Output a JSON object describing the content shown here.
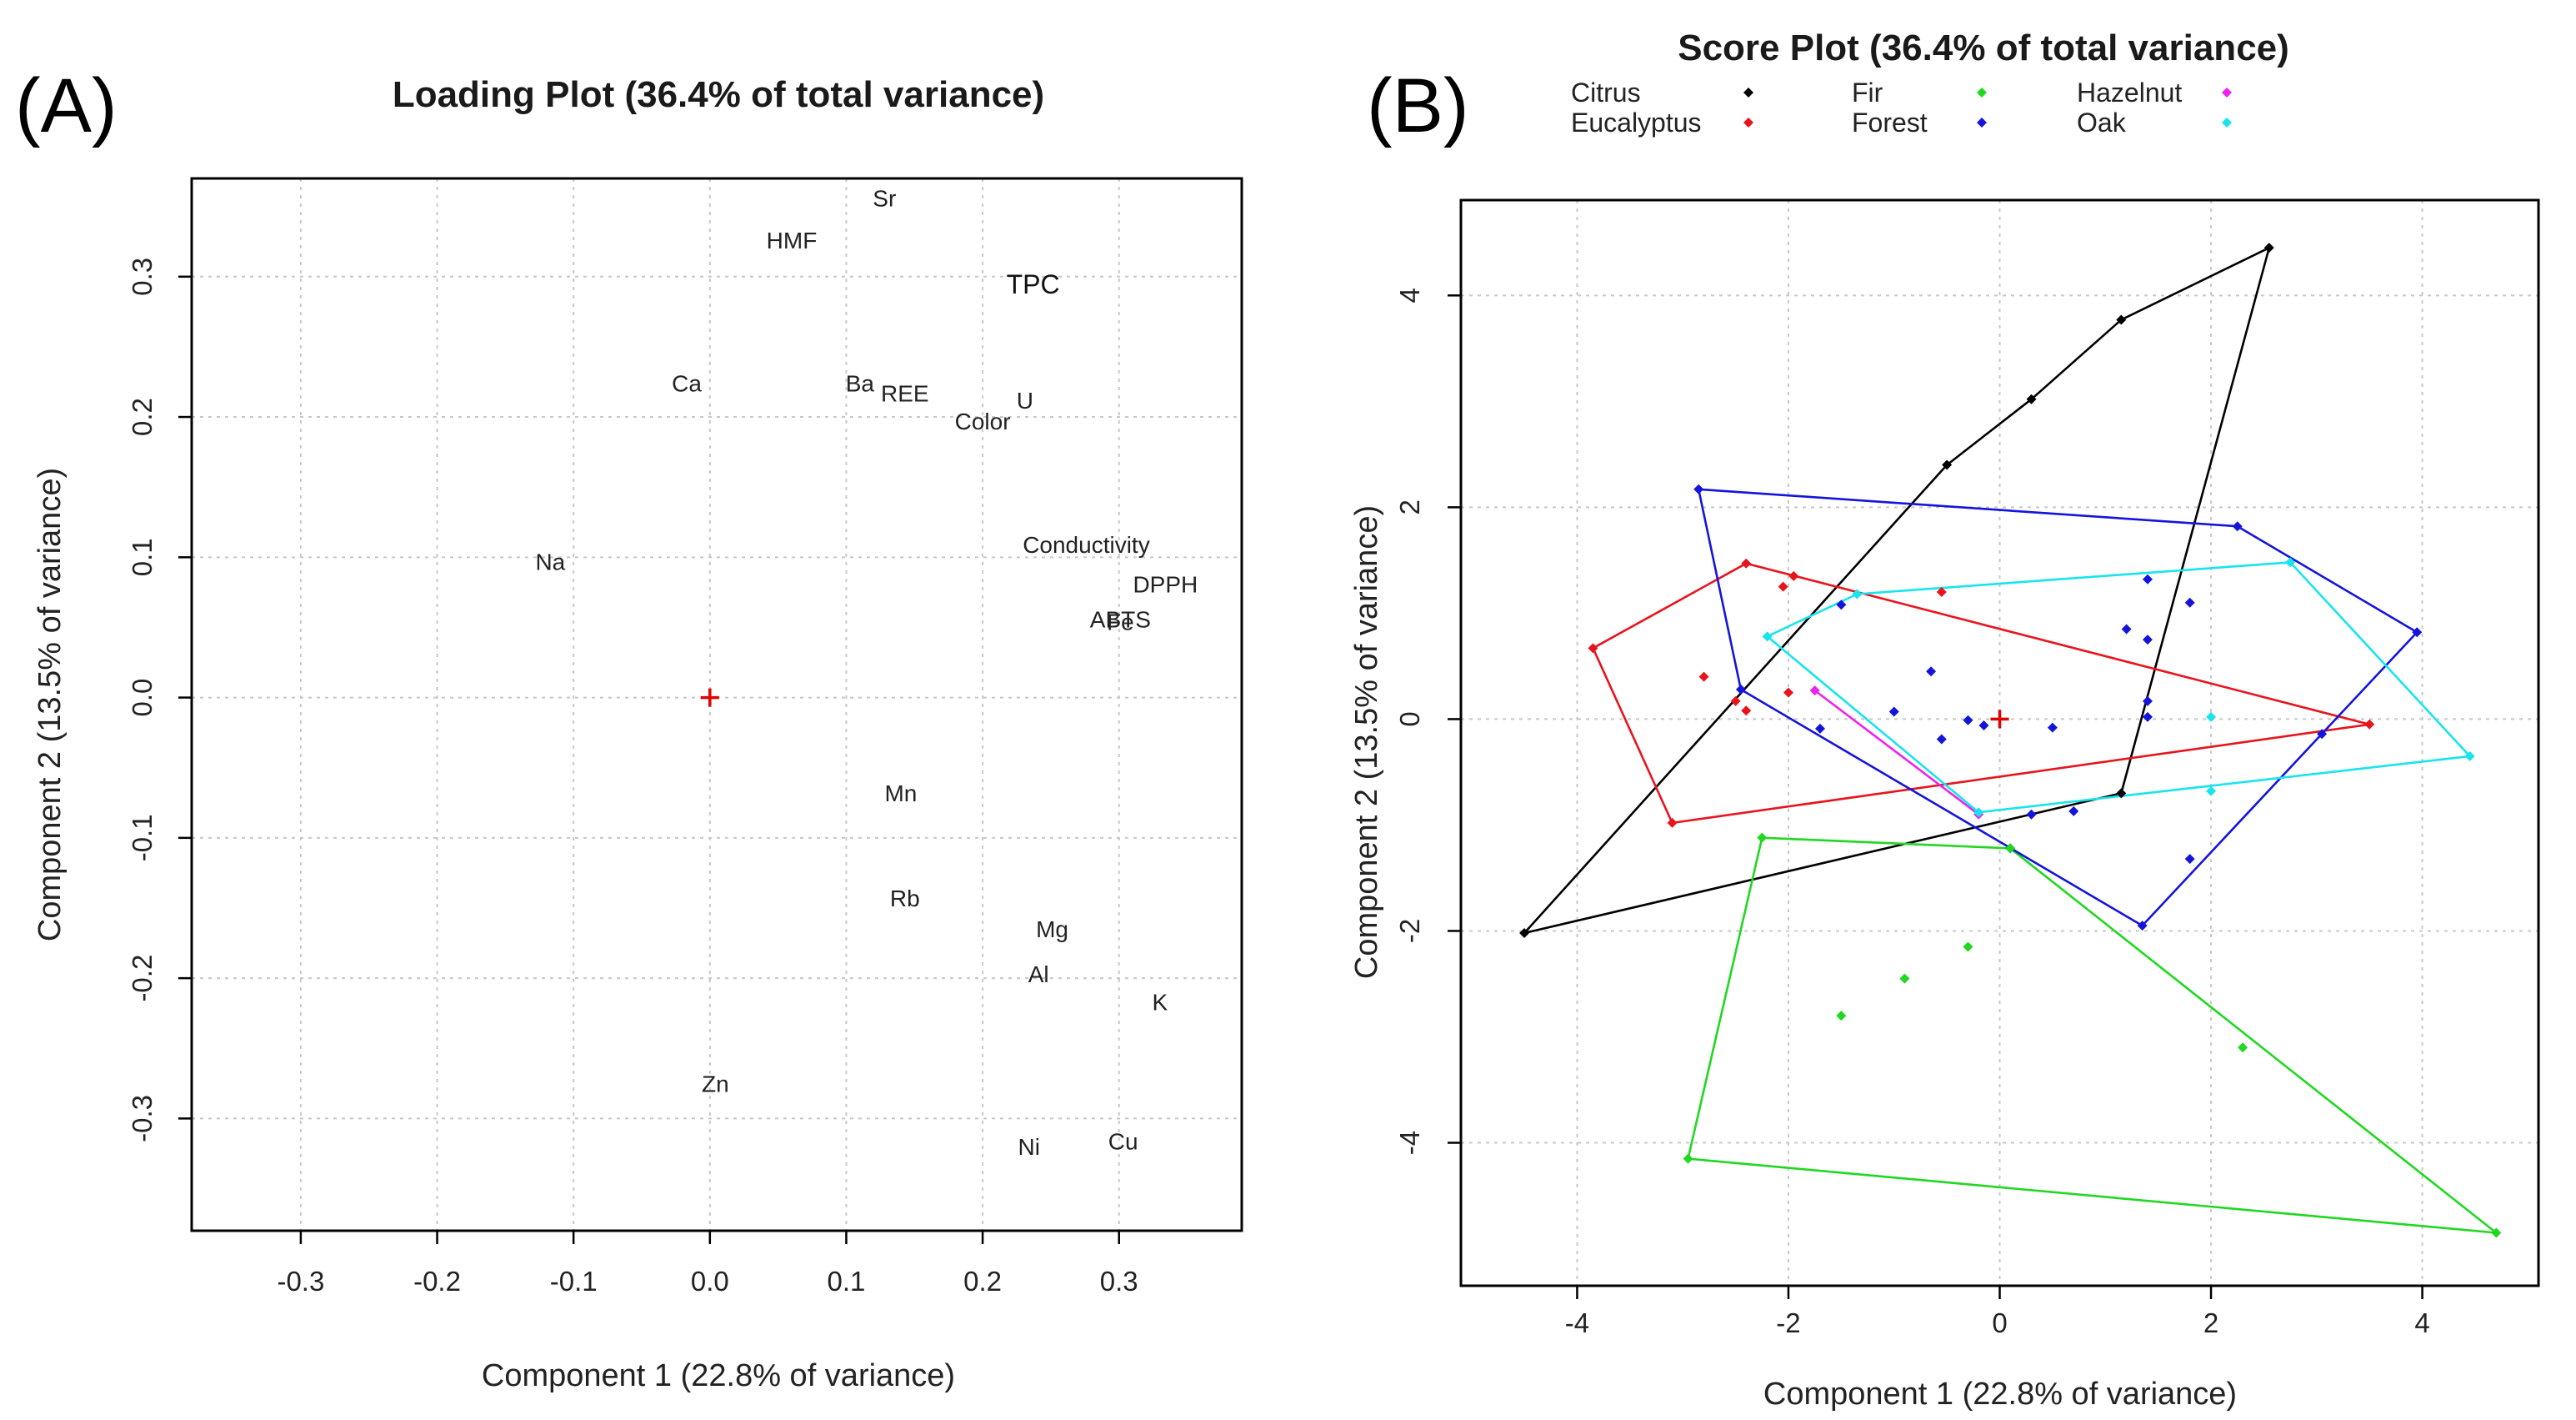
{
  "chart_data": [
    {
      "type": "scatter",
      "panel_label": "(A)",
      "title": "Loading Plot (36.4% of total variance)",
      "xlabel": "Component 1 (22.8% of variance)",
      "ylabel": "Component 2 (13.5% of variance)",
      "xlim": [
        -0.38,
        0.39
      ],
      "ylim": [
        -0.38,
        0.37
      ],
      "xticks": [
        -0.3,
        -0.2,
        -0.1,
        0.0,
        0.1,
        0.2,
        0.3
      ],
      "xtick_labels": [
        "-0.3",
        "-0.2",
        "-0.1",
        "0.0",
        "0.1",
        "0.2",
        "0.3"
      ],
      "yticks": [
        -0.3,
        -0.2,
        -0.1,
        0.0,
        0.1,
        0.2,
        0.3
      ],
      "ytick_labels": [
        "-0.3",
        "-0.2",
        "-0.1",
        "0.0",
        "0.1",
        "0.2",
        "0.3"
      ],
      "grid": true,
      "origin_marker": {
        "x": 0,
        "y": 0,
        "symbol": "+",
        "color": "#e00000"
      },
      "points": [
        {
          "label": "Sr",
          "x": 0.128,
          "y": 0.356
        },
        {
          "label": "HMF",
          "x": 0.06,
          "y": 0.326
        },
        {
          "label": "TPC",
          "x": 0.237,
          "y": 0.294
        },
        {
          "label": "Ca",
          "x": -0.017,
          "y": 0.224
        },
        {
          "label": "Ba",
          "x": 0.11,
          "y": 0.224
        },
        {
          "label": "REE",
          "x": 0.143,
          "y": 0.217
        },
        {
          "label": "U",
          "x": 0.231,
          "y": 0.212
        },
        {
          "label": "Color",
          "x": 0.2,
          "y": 0.197
        },
        {
          "label": "Conductivity",
          "x": 0.276,
          "y": 0.109
        },
        {
          "label": "Na",
          "x": -0.117,
          "y": 0.097
        },
        {
          "label": "DPPH",
          "x": 0.334,
          "y": 0.081
        },
        {
          "label": "ABTS",
          "x": 0.301,
          "y": 0.056
        },
        {
          "label": "Fe",
          "x": 0.301,
          "y": 0.054
        },
        {
          "label": "Mn",
          "x": 0.14,
          "y": -0.068
        },
        {
          "label": "Rb",
          "x": 0.143,
          "y": -0.143
        },
        {
          "label": "Mg",
          "x": 0.251,
          "y": -0.165
        },
        {
          "label": "Al",
          "x": 0.241,
          "y": -0.197
        },
        {
          "label": "K",
          "x": 0.33,
          "y": -0.217
        },
        {
          "label": "Zn",
          "x": 0.004,
          "y": -0.275
        },
        {
          "label": "Cu",
          "x": 0.303,
          "y": -0.316
        },
        {
          "label": "Ni",
          "x": 0.234,
          "y": -0.32
        }
      ]
    },
    {
      "type": "scatter",
      "panel_label": "(B)",
      "title": "Score Plot (36.4% of total variance)",
      "xlabel": "Component 1 (22.8% of variance)",
      "ylabel": "Component 2 (13.5% of variance)",
      "xlim": [
        -5.1,
        5.1
      ],
      "ylim": [
        -5.35,
        4.9
      ],
      "xticks": [
        -4,
        -2,
        0,
        2,
        4
      ],
      "xtick_labels": [
        "-4",
        "-2",
        "0",
        "2",
        "4"
      ],
      "yticks": [
        -4,
        -2,
        0,
        2,
        4
      ],
      "ytick_labels": [
        "-4",
        "-2",
        "0",
        "2",
        "4"
      ],
      "grid": true,
      "legend_position": "top",
      "origin_marker": {
        "x": 0,
        "y": 0,
        "symbol": "+",
        "color": "#e00000"
      },
      "series": [
        {
          "name": "Citrus",
          "color": "#000000",
          "points": [
            [
              2.55,
              4.45
            ],
            [
              1.15,
              3.77
            ],
            [
              0.3,
              3.02
            ],
            [
              -0.5,
              2.4
            ],
            [
              -4.5,
              -2.02
            ],
            [
              1.15,
              -0.7
            ],
            [
              0.1,
              -1.22
            ]
          ],
          "hull": [
            [
              2.55,
              4.45
            ],
            [
              1.15,
              3.77
            ],
            [
              0.3,
              3.02
            ],
            [
              -0.5,
              2.4
            ],
            [
              -4.5,
              -2.02
            ],
            [
              1.15,
              -0.7
            ]
          ]
        },
        {
          "name": "Eucalyptus",
          "color": "#e8141c",
          "points": [
            [
              -2.4,
              1.47
            ],
            [
              -1.95,
              1.35
            ],
            [
              -2.05,
              1.25
            ],
            [
              -0.55,
              1.2
            ],
            [
              -3.85,
              0.67
            ],
            [
              -2.8,
              0.4
            ],
            [
              -2.0,
              0.25
            ],
            [
              -2.5,
              0.17
            ],
            [
              -2.4,
              0.08
            ],
            [
              3.5,
              -0.05
            ],
            [
              -3.1,
              -0.98
            ]
          ],
          "hull": [
            [
              -2.4,
              1.47
            ],
            [
              3.5,
              -0.05
            ],
            [
              -3.1,
              -0.98
            ],
            [
              -3.85,
              0.67
            ]
          ]
        },
        {
          "name": "Fir",
          "color": "#1fd81f",
          "points": [
            [
              -2.25,
              -1.12
            ],
            [
              0.1,
              -1.22
            ],
            [
              -0.3,
              -2.15
            ],
            [
              -0.9,
              -2.45
            ],
            [
              -1.5,
              -2.8
            ],
            [
              2.3,
              -3.1
            ],
            [
              -2.95,
              -4.15
            ],
            [
              4.7,
              -4.85
            ]
          ],
          "hull": [
            [
              -2.25,
              -1.12
            ],
            [
              0.1,
              -1.22
            ],
            [
              4.7,
              -4.85
            ],
            [
              -2.95,
              -4.15
            ]
          ]
        },
        {
          "name": "Forest",
          "color": "#1414dc",
          "points": [
            [
              -2.85,
              2.17
            ],
            [
              2.25,
              1.82
            ],
            [
              1.4,
              1.32
            ],
            [
              1.8,
              1.1
            ],
            [
              -1.5,
              1.08
            ],
            [
              1.2,
              0.85
            ],
            [
              1.4,
              0.75
            ],
            [
              3.95,
              0.82
            ],
            [
              -0.65,
              0.45
            ],
            [
              -2.45,
              0.28
            ],
            [
              -1.0,
              0.07
            ],
            [
              1.4,
              0.17
            ],
            [
              1.4,
              0.02
            ],
            [
              -0.3,
              -0.01
            ],
            [
              -0.15,
              -0.06
            ],
            [
              0.5,
              -0.08
            ],
            [
              -1.7,
              -0.09
            ],
            [
              3.05,
              -0.14
            ],
            [
              -0.55,
              -0.19
            ],
            [
              0.7,
              -0.87
            ],
            [
              0.3,
              -0.9
            ],
            [
              1.8,
              -1.32
            ],
            [
              1.35,
              -1.95
            ]
          ],
          "hull": [
            [
              -2.85,
              2.17
            ],
            [
              2.25,
              1.82
            ],
            [
              3.95,
              0.82
            ],
            [
              1.35,
              -1.95
            ],
            [
              -2.45,
              0.28
            ]
          ]
        },
        {
          "name": "Hazelnut",
          "color": "#ee22ee",
          "points": [
            [
              -1.75,
              0.27
            ],
            [
              -0.2,
              -0.9
            ]
          ],
          "hull": [
            [
              -1.75,
              0.27
            ],
            [
              -0.2,
              -0.9
            ]
          ]
        },
        {
          "name": "Oak",
          "color": "#18e4ec",
          "points": [
            [
              2.75,
              1.48
            ],
            [
              -1.35,
              1.18
            ],
            [
              -2.2,
              0.78
            ],
            [
              2.0,
              0.02
            ],
            [
              4.45,
              -0.35
            ],
            [
              2.0,
              -0.68
            ],
            [
              -0.2,
              -0.88
            ]
          ],
          "hull": [
            [
              -1.35,
              1.18
            ],
            [
              2.75,
              1.48
            ],
            [
              4.45,
              -0.35
            ],
            [
              -0.2,
              -0.88
            ],
            [
              -2.2,
              0.78
            ]
          ]
        }
      ]
    }
  ]
}
